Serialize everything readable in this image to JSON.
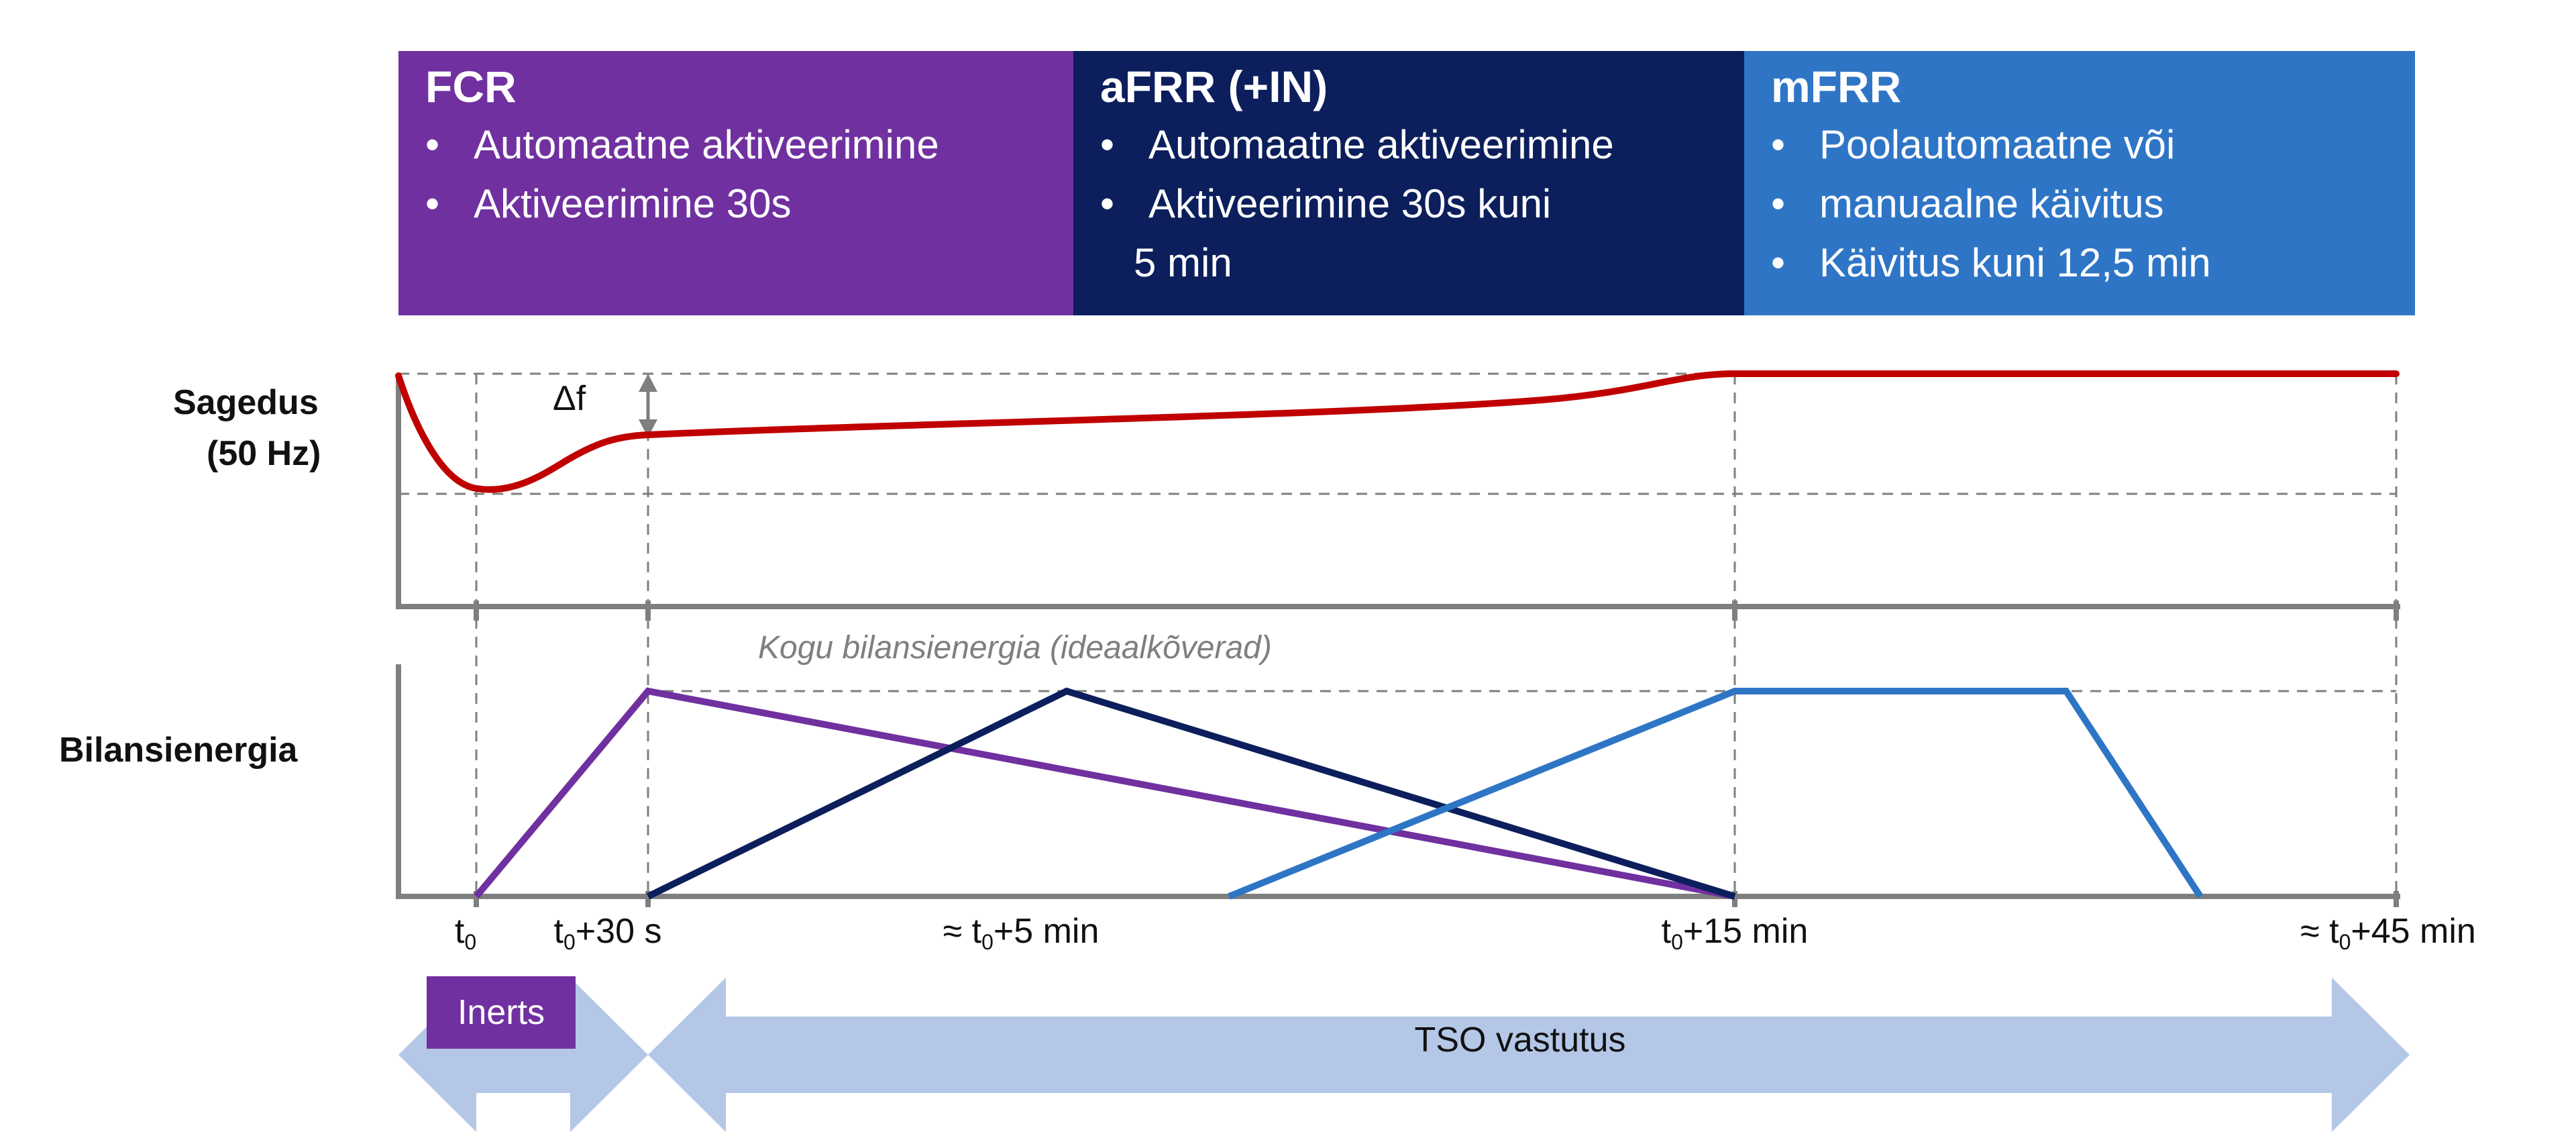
{
  "colors": {
    "fcr": "#7030a0",
    "afrr": "#0c1f5c",
    "mfrr": "#2e75c6",
    "frequency": "#c00000",
    "axis": "#7f7f7f",
    "arrow": "#b4c7e7"
  },
  "panels": {
    "fcr": {
      "title": "FCR",
      "bullets": [
        "Automaatne aktiveerimine",
        "Aktiveerimine 30s"
      ]
    },
    "afrr": {
      "title": "aFRR (+IN)",
      "bullets": [
        "Automaatne aktiveerimine",
        "Aktiveerimine 30s kuni"
      ],
      "continuation": "5 min"
    },
    "mfrr": {
      "title": "mFRR",
      "bullets": [
        "Poolautomaatne või",
        "manuaalne käivitus",
        "Käivitus kuni 12,5 min"
      ]
    }
  },
  "labels": {
    "frequency_line1": "Sagedus",
    "frequency_line2": "(50 Hz)",
    "balancing_energy": "Bilansienergia",
    "delta_f": "Δf",
    "note": "Kogu bilansienergia (ideaalkõverad)"
  },
  "time_ticks": [
    {
      "prefix": "",
      "base": "t",
      "sub": "0",
      "suffix": ""
    },
    {
      "prefix": "",
      "base": "t",
      "sub": "0",
      "suffix": "+30 s"
    },
    {
      "prefix": "≈ ",
      "base": "t",
      "sub": "0",
      "suffix": "+5 min"
    },
    {
      "prefix": "",
      "base": "t",
      "sub": "0",
      "suffix": "+15 min"
    },
    {
      "prefix": "≈ ",
      "base": "t",
      "sub": "0",
      "suffix": "+45 min"
    }
  ],
  "bottom": {
    "inertia": "Inerts",
    "tso": "TSO vastutus"
  }
}
